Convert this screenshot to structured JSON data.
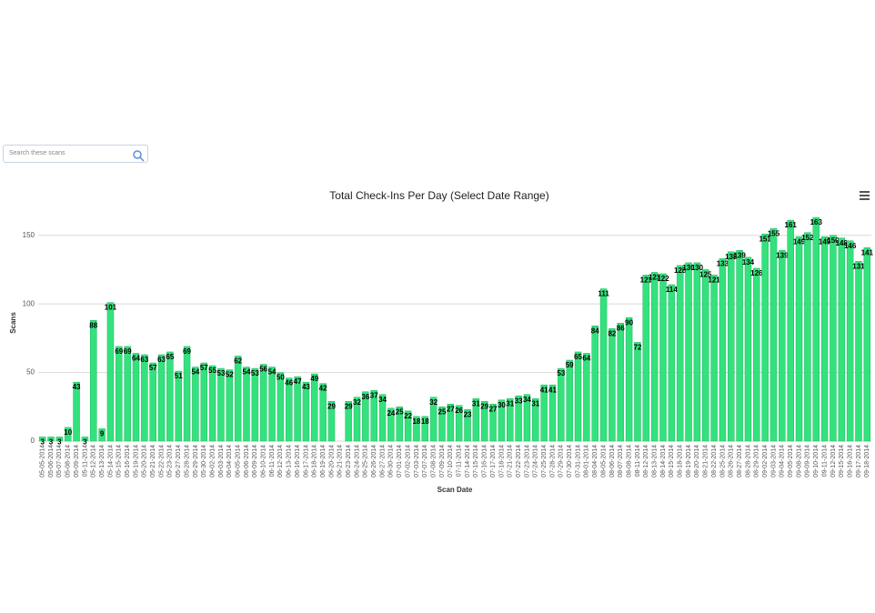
{
  "search": {
    "placeholder": "Search these scans"
  },
  "chart_data": {
    "type": "bar",
    "title": "Total Check-Ins Per Day (Select Date Range)",
    "x_label": "Scan Date",
    "y_label": "Scans",
    "color": "#33e27c",
    "categories": [
      "05-05-2014",
      "05-06-2014",
      "05-07-2014",
      "05-08-2014",
      "05-09-2014",
      "05-11-2014",
      "05-12-2014",
      "05-13-2014",
      "05-14-2014",
      "05-15-2014",
      "05-16-2014",
      "05-19-2014",
      "05-20-2014",
      "05-21-2014",
      "05-22-2014",
      "05-23-2014",
      "05-27-2014",
      "05-28-2014",
      "05-29-2014",
      "05-30-2014",
      "06-02-2014",
      "06-03-2014",
      "06-04-2014",
      "06-05-2014",
      "06-06-2014",
      "06-09-2014",
      "06-10-2014",
      "06-11-2014",
      "06-12-2014",
      "06-13-2014",
      "06-16-2014",
      "06-17-2014",
      "06-18-2014",
      "06-19-2014",
      "06-20-2014",
      "06-21-2014",
      "06-23-2014",
      "06-24-2014",
      "06-25-2014",
      "06-26-2014",
      "06-27-2014",
      "06-30-2014",
      "07-01-2014",
      "07-02-2014",
      "07-03-2014",
      "07-07-2014",
      "07-08-2014",
      "07-09-2014",
      "07-10-2014",
      "07-11-2014",
      "07-14-2014",
      "07-15-2014",
      "07-16-2014",
      "07-17-2014",
      "07-18-2014",
      "07-21-2014",
      "07-22-2014",
      "07-23-2014",
      "07-24-2014",
      "07-25-2014",
      "07-28-2014",
      "07-29-2014",
      "07-30-2014",
      "07-31-2014",
      "08-01-2014",
      "08-04-2014",
      "08-05-2014",
      "08-06-2014",
      "08-07-2014",
      "08-08-2014",
      "08-11-2014",
      "08-12-2014",
      "08-13-2014",
      "08-14-2014",
      "08-15-2014",
      "08-18-2014",
      "08-19-2014",
      "08-20-2014",
      "08-21-2014",
      "08-22-2014",
      "08-25-2014",
      "08-26-2014",
      "08-27-2014",
      "08-28-2014",
      "08-29-2014",
      "09-02-2014",
      "09-03-2014",
      "09-04-2014",
      "09-05-2014",
      "09-08-2014",
      "09-09-2014",
      "09-10-2014",
      "09-11-2014",
      "09-12-2014",
      "09-15-2014",
      "09-16-2014",
      "09-17-2014",
      "09-18-2014"
    ],
    "values": [
      3,
      3,
      3,
      10,
      43,
      3,
      88,
      9,
      101,
      69,
      69,
      64,
      63,
      57,
      63,
      65,
      51,
      69,
      54,
      57,
      55,
      53,
      52,
      62,
      54,
      53,
      56,
      54,
      50,
      46,
      47,
      43,
      49,
      42,
      29,
      null,
      29,
      32,
      36,
      37,
      34,
      24,
      25,
      22,
      18,
      18,
      32,
      25,
      27,
      26,
      23,
      31,
      29,
      27,
      30,
      31,
      33,
      34,
      31,
      41,
      41,
      53,
      59,
      65,
      64,
      84,
      111,
      82,
      86,
      90,
      72,
      121,
      123,
      122,
      114,
      128,
      130,
      130,
      125,
      121,
      133,
      138,
      139,
      134,
      126,
      151,
      155,
      139,
      161,
      149,
      152,
      163,
      149,
      150,
      148,
      146,
      131,
      141
    ],
    "ylim": [
      0,
      175
    ],
    "yticks": [
      0,
      50,
      100,
      150
    ],
    "grid": true
  }
}
